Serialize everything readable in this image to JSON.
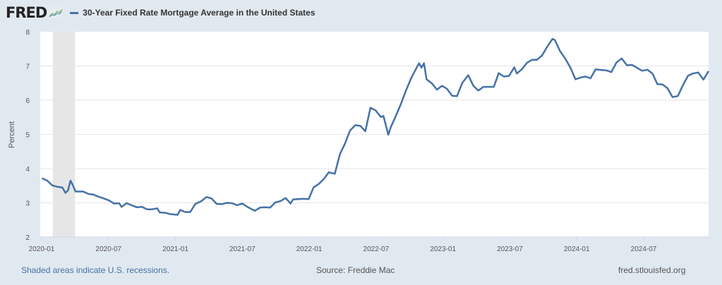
{
  "header": {
    "logo": "FRED",
    "logo_icon": "trend-chart-icon",
    "legend_label": "30-Year Fixed Rate Mortgage Average in the United States"
  },
  "footer": {
    "recession_note": "Shaded areas indicate U.S. recessions.",
    "source": "Source: Freddie Mac",
    "site": "fred.stlouisfed.org"
  },
  "colors": {
    "line": "#4572a7",
    "background": "#e1e9f0",
    "plot": "#ffffff",
    "recession": "#e6e6e6",
    "grid": "#e6e6e6"
  },
  "chart_data": {
    "type": "line",
    "title": "30-Year Fixed Rate Mortgage Average in the United States",
    "xlabel": "",
    "ylabel": "Percent",
    "ylim": [
      2,
      8
    ],
    "yticks": [
      2,
      3,
      4,
      5,
      6,
      7,
      8
    ],
    "xticks": [
      "2020-01",
      "2020-07",
      "2021-01",
      "2021-07",
      "2022-01",
      "2022-07",
      "2023-01",
      "2023-07",
      "2024-01",
      "2024-07"
    ],
    "xlim": [
      "2020-01",
      "2024-12"
    ],
    "grid": true,
    "legend": "top-left",
    "recessions": [
      {
        "start": "2020-02",
        "end": "2020-04"
      }
    ],
    "series": [
      {
        "name": "30-Year Fixed Rate Mortgage Average in the United States",
        "points": [
          [
            "2020-01-02",
            3.72
          ],
          [
            "2020-01-16",
            3.65
          ],
          [
            "2020-01-30",
            3.51
          ],
          [
            "2020-02-13",
            3.47
          ],
          [
            "2020-02-27",
            3.45
          ],
          [
            "2020-03-05",
            3.29
          ],
          [
            "2020-03-12",
            3.36
          ],
          [
            "2020-03-19",
            3.65
          ],
          [
            "2020-03-26",
            3.5
          ],
          [
            "2020-04-02",
            3.33
          ],
          [
            "2020-04-23",
            3.33
          ],
          [
            "2020-05-07",
            3.26
          ],
          [
            "2020-05-21",
            3.24
          ],
          [
            "2020-06-04",
            3.18
          ],
          [
            "2020-06-18",
            3.13
          ],
          [
            "2020-07-02",
            3.07
          ],
          [
            "2020-07-16",
            2.98
          ],
          [
            "2020-07-30",
            2.99
          ],
          [
            "2020-08-06",
            2.88
          ],
          [
            "2020-08-20",
            2.99
          ],
          [
            "2020-09-03",
            2.93
          ],
          [
            "2020-09-17",
            2.87
          ],
          [
            "2020-10-01",
            2.88
          ],
          [
            "2020-10-15",
            2.81
          ],
          [
            "2020-10-29",
            2.81
          ],
          [
            "2020-11-12",
            2.84
          ],
          [
            "2020-11-19",
            2.72
          ],
          [
            "2020-12-03",
            2.71
          ],
          [
            "2020-12-17",
            2.67
          ],
          [
            "2021-01-07",
            2.65
          ],
          [
            "2021-01-14",
            2.79
          ],
          [
            "2021-01-28",
            2.73
          ],
          [
            "2021-02-11",
            2.73
          ],
          [
            "2021-02-25",
            2.97
          ],
          [
            "2021-03-11",
            3.05
          ],
          [
            "2021-03-25",
            3.17
          ],
          [
            "2021-04-08",
            3.13
          ],
          [
            "2021-04-22",
            2.97
          ],
          [
            "2021-05-06",
            2.96
          ],
          [
            "2021-05-20",
            3.0
          ],
          [
            "2021-06-03",
            2.99
          ],
          [
            "2021-06-17",
            2.93
          ],
          [
            "2021-07-01",
            2.98
          ],
          [
            "2021-07-15",
            2.88
          ],
          [
            "2021-07-29",
            2.8
          ],
          [
            "2021-08-05",
            2.77
          ],
          [
            "2021-08-19",
            2.86
          ],
          [
            "2021-09-02",
            2.87
          ],
          [
            "2021-09-16",
            2.86
          ],
          [
            "2021-09-30",
            3.01
          ],
          [
            "2021-10-14",
            3.05
          ],
          [
            "2021-10-28",
            3.14
          ],
          [
            "2021-11-11",
            2.98
          ],
          [
            "2021-11-18",
            3.1
          ],
          [
            "2021-12-02",
            3.11
          ],
          [
            "2021-12-16",
            3.12
          ],
          [
            "2021-12-30",
            3.11
          ],
          [
            "2022-01-13",
            3.45
          ],
          [
            "2022-01-27",
            3.55
          ],
          [
            "2022-02-10",
            3.69
          ],
          [
            "2022-02-24",
            3.89
          ],
          [
            "2022-03-10",
            3.85
          ],
          [
            "2022-03-24",
            4.42
          ],
          [
            "2022-04-07",
            4.72
          ],
          [
            "2022-04-21",
            5.11
          ],
          [
            "2022-05-05",
            5.27
          ],
          [
            "2022-05-19",
            5.25
          ],
          [
            "2022-06-02",
            5.09
          ],
          [
            "2022-06-16",
            5.78
          ],
          [
            "2022-06-30",
            5.7
          ],
          [
            "2022-07-14",
            5.51
          ],
          [
            "2022-07-21",
            5.54
          ],
          [
            "2022-08-04",
            4.99
          ],
          [
            "2022-08-11",
            5.22
          ],
          [
            "2022-08-25",
            5.55
          ],
          [
            "2022-09-08",
            5.89
          ],
          [
            "2022-09-22",
            6.29
          ],
          [
            "2022-10-06",
            6.66
          ],
          [
            "2022-10-20",
            6.94
          ],
          [
            "2022-10-27",
            7.08
          ],
          [
            "2022-11-03",
            6.95
          ],
          [
            "2022-11-10",
            7.08
          ],
          [
            "2022-11-17",
            6.61
          ],
          [
            "2022-12-01",
            6.49
          ],
          [
            "2022-12-15",
            6.31
          ],
          [
            "2022-12-29",
            6.42
          ],
          [
            "2023-01-12",
            6.33
          ],
          [
            "2023-01-26",
            6.13
          ],
          [
            "2023-02-09",
            6.12
          ],
          [
            "2023-02-23",
            6.5
          ],
          [
            "2023-03-09",
            6.73
          ],
          [
            "2023-03-23",
            6.42
          ],
          [
            "2023-04-06",
            6.28
          ],
          [
            "2023-04-20",
            6.39
          ],
          [
            "2023-05-04",
            6.39
          ],
          [
            "2023-05-18",
            6.39
          ],
          [
            "2023-06-01",
            6.79
          ],
          [
            "2023-06-15",
            6.69
          ],
          [
            "2023-06-29",
            6.71
          ],
          [
            "2023-07-13",
            6.96
          ],
          [
            "2023-07-20",
            6.78
          ],
          [
            "2023-08-03",
            6.9
          ],
          [
            "2023-08-17",
            7.09
          ],
          [
            "2023-08-31",
            7.18
          ],
          [
            "2023-09-14",
            7.18
          ],
          [
            "2023-09-28",
            7.31
          ],
          [
            "2023-10-12",
            7.57
          ],
          [
            "2023-10-26",
            7.79
          ],
          [
            "2023-11-02",
            7.76
          ],
          [
            "2023-11-16",
            7.44
          ],
          [
            "2023-11-30",
            7.22
          ],
          [
            "2023-12-14",
            6.95
          ],
          [
            "2023-12-28",
            6.61
          ],
          [
            "2024-01-11",
            6.66
          ],
          [
            "2024-01-25",
            6.69
          ],
          [
            "2024-02-08",
            6.64
          ],
          [
            "2024-02-22",
            6.9
          ],
          [
            "2024-03-07",
            6.88
          ],
          [
            "2024-03-21",
            6.87
          ],
          [
            "2024-04-04",
            6.82
          ],
          [
            "2024-04-18",
            7.1
          ],
          [
            "2024-05-02",
            7.22
          ],
          [
            "2024-05-16",
            7.02
          ],
          [
            "2024-05-30",
            7.03
          ],
          [
            "2024-06-13",
            6.95
          ],
          [
            "2024-06-27",
            6.86
          ],
          [
            "2024-07-11",
            6.89
          ],
          [
            "2024-07-25",
            6.78
          ],
          [
            "2024-08-08",
            6.47
          ],
          [
            "2024-08-22",
            6.46
          ],
          [
            "2024-09-05",
            6.35
          ],
          [
            "2024-09-19",
            6.09
          ],
          [
            "2024-10-03",
            6.12
          ],
          [
            "2024-10-17",
            6.44
          ],
          [
            "2024-10-31",
            6.72
          ],
          [
            "2024-11-14",
            6.78
          ],
          [
            "2024-11-28",
            6.81
          ],
          [
            "2024-12-12",
            6.6
          ],
          [
            "2024-12-26",
            6.85
          ]
        ]
      }
    ]
  }
}
